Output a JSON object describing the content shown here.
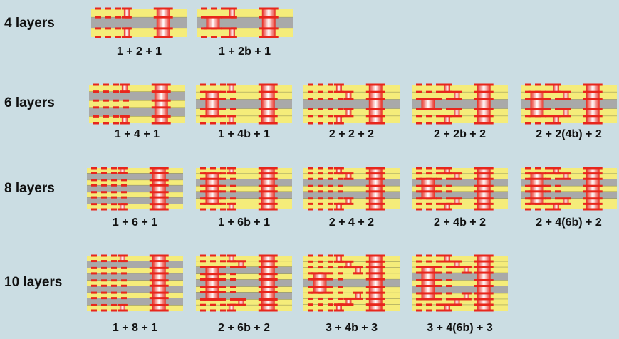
{
  "colors": {
    "background": "#cbdde3",
    "prepreg": "#f5ec7a",
    "core": "#a9a9a9",
    "copper": "#e8261c",
    "via_highlight": "#ffffff"
  },
  "rows": [
    {
      "label": "4 layers",
      "panels": [
        {
          "caption": "1 + 2 + 1"
        },
        {
          "caption": "1 + 2b + 1"
        }
      ]
    },
    {
      "label": "6 layers",
      "panels": [
        {
          "caption": "1 + 4 + 1"
        },
        {
          "caption": "1 + 4b + 1"
        },
        {
          "caption": "2 + 2 + 2"
        },
        {
          "caption": "2 + 2b + 2"
        },
        {
          "caption": "2 + 2(4b) + 2"
        }
      ]
    },
    {
      "label": "8 layers",
      "panels": [
        {
          "caption": "1 + 6 + 1"
        },
        {
          "caption": "1 + 6b + 1"
        },
        {
          "caption": "2 + 4 + 2"
        },
        {
          "caption": "2 + 4b + 2"
        },
        {
          "caption": "2 + 4(6b) + 2"
        }
      ]
    },
    {
      "label": "10 layers",
      "panels": [
        {
          "caption": "1 + 8 + 1"
        },
        {
          "caption": "2 + 6b + 2"
        },
        {
          "caption": "3 + 4b + 3"
        },
        {
          "caption": "3 + 4(6b) + 3"
        }
      ]
    }
  ]
}
